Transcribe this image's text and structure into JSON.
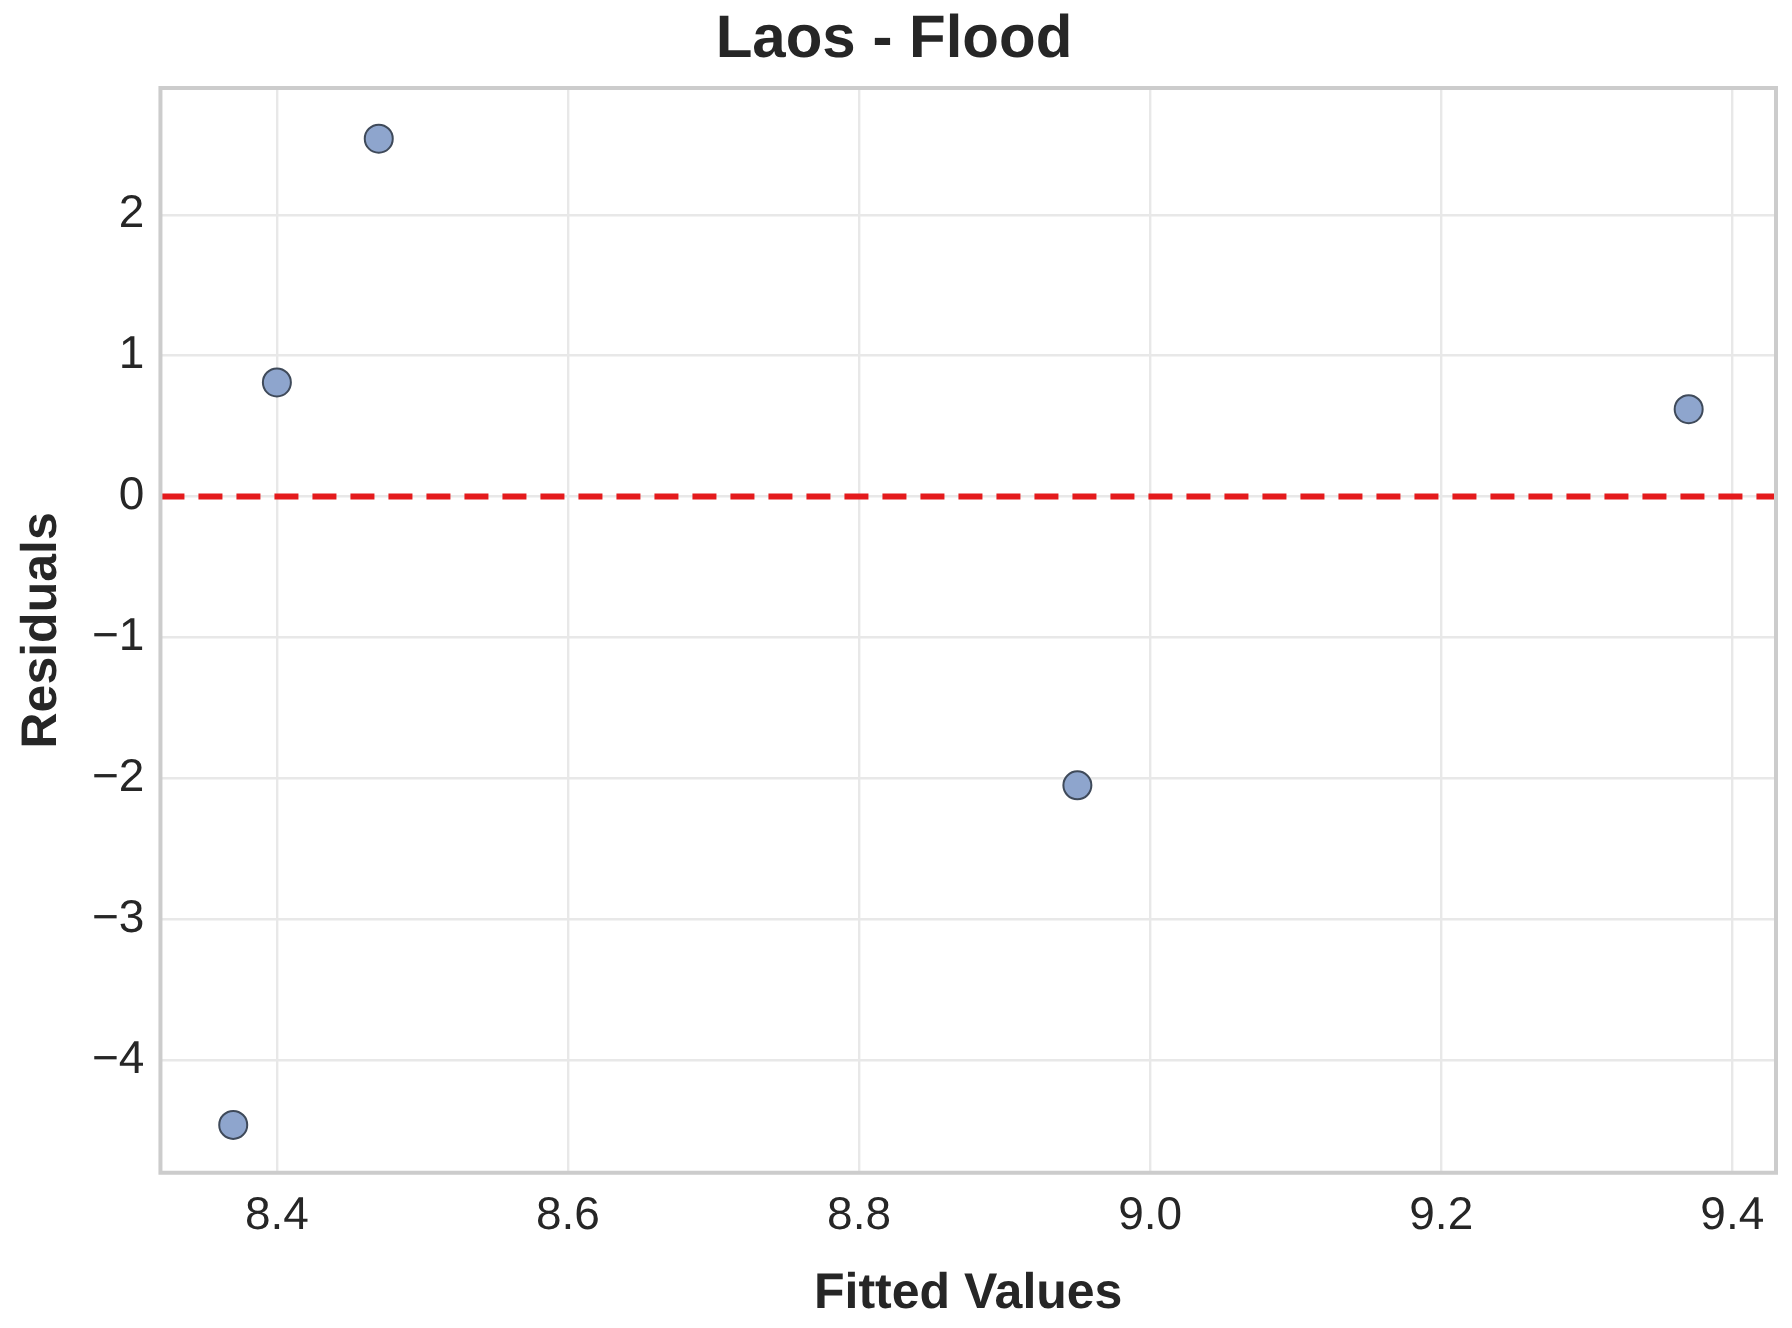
{
  "chart_data": {
    "type": "scatter",
    "title": "Laos - Flood",
    "xlabel": "Fitted Values",
    "ylabel": "Residuals",
    "x": [
      8.37,
      8.4,
      8.47,
      8.95,
      9.37
    ],
    "series": [
      {
        "color": "#8ea5cd",
        "values": [
          -4.46,
          0.81,
          2.54,
          -2.05,
          0.62
        ]
      }
    ],
    "xlim": [
      8.32,
      9.43
    ],
    "xticks": [
      8.4,
      8.6,
      8.8,
      {
        "value": 9,
        "label": "9.0"
      },
      9.2,
      9.4
    ],
    "ylim": [
      -4.8,
      2.9
    ],
    "yticks": [
      -4,
      -3,
      -2,
      -1,
      0,
      1,
      2
    ],
    "ref_lines": [
      {
        "axis": "y",
        "value": 0,
        "color": "#e41a1c",
        "line_style": "dashed"
      }
    ],
    "grid": true,
    "legend": false,
    "marker": "circle"
  }
}
